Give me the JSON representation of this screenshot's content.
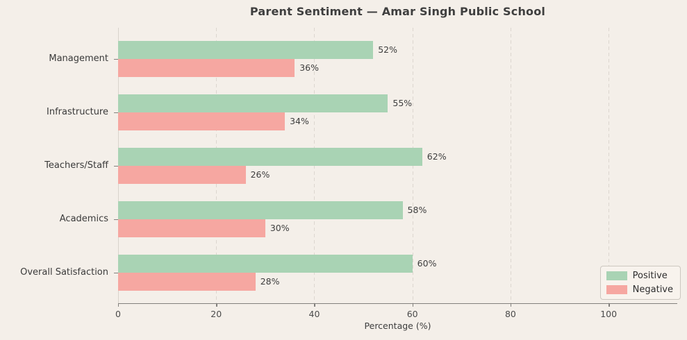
{
  "chart_data": {
    "type": "bar",
    "orientation": "horizontal",
    "title": "Parent Sentiment — Amar Singh Public School",
    "xlabel": "Percentage (%)",
    "categories": [
      "Management",
      "Infrastructure",
      "Teachers/Staff",
      "Academics",
      "Overall Satisfaction"
    ],
    "series": [
      {
        "name": "Positive",
        "color": "#a9d3b4",
        "values": [
          52,
          55,
          62,
          58,
          60
        ]
      },
      {
        "name": "Negative",
        "color": "#f6a7a1",
        "values": [
          36,
          34,
          26,
          30,
          28
        ]
      }
    ],
    "value_suffix": "%",
    "xlim": [
      0,
      114
    ],
    "xticks": [
      0,
      20,
      40,
      60,
      80,
      100
    ],
    "grid": true,
    "legend_position": "lower right",
    "colors": {
      "background": "#f4efe9",
      "grid": "#dcd6cf",
      "axis": "#82807d",
      "text": "#3d3d3d"
    }
  }
}
